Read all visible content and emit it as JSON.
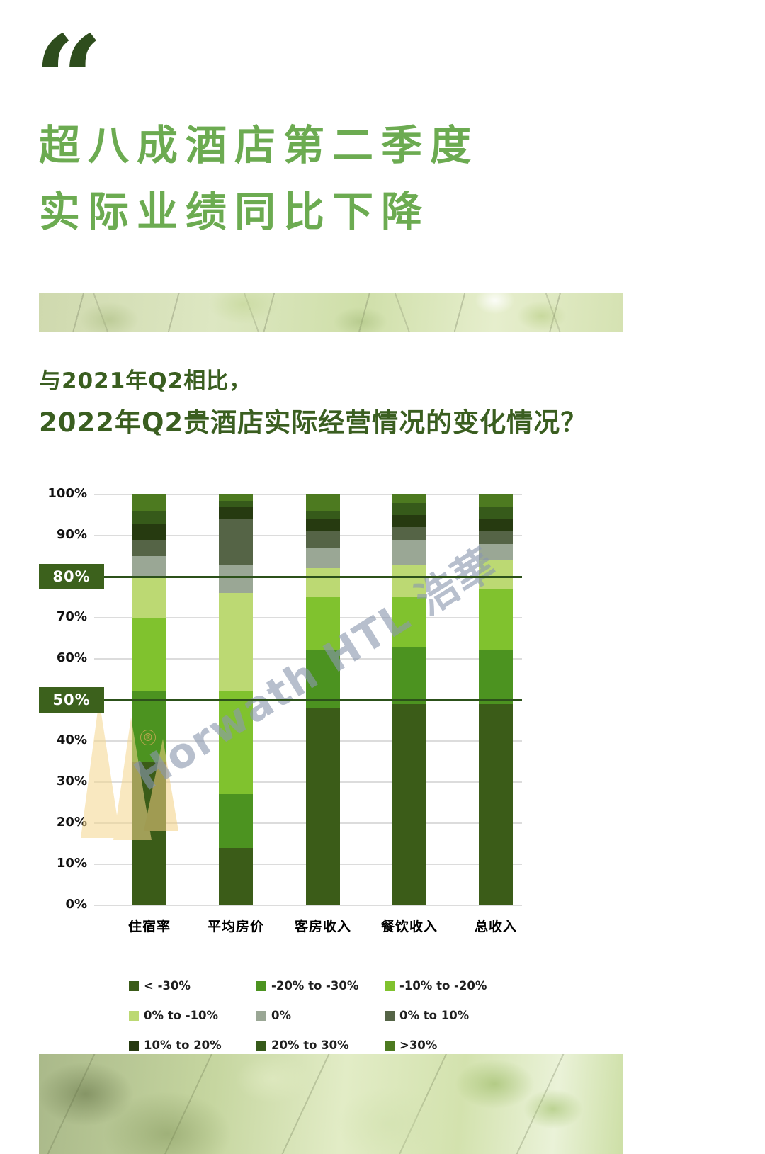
{
  "page": {
    "quote_mark": "“",
    "title_line1": "超八成酒店第二季度",
    "title_line2": "实际业绩同比下降",
    "subtitle_line1": "与2021年Q2相比，",
    "subtitle_line2": "2022年Q2贵酒店实际经营情况的变化情况？"
  },
  "watermark": {
    "text": "Horwath HTL 浩華",
    "registered_mark": "®"
  },
  "colors": {
    "quote_green": "#2e4d1d",
    "title_green": "#6cab51",
    "subtitle_green": "#3a5e20",
    "highlight_box_green": "#3c611c",
    "highlight_line_green": "#2c511a",
    "grid_gray": "#dcdcdc",
    "watermark_blue_gray": "#8b97ae",
    "logo_gold": "#f5d78e"
  },
  "chart_data": {
    "type": "bar",
    "stacked": true,
    "grid": true,
    "legend_position": "bottom",
    "ylim": [
      0,
      100
    ],
    "y_ticks": [
      "0%",
      "10%",
      "20%",
      "30%",
      "40%",
      "50%",
      "60%",
      "70%",
      "80%",
      "90%",
      "100%"
    ],
    "highlighted_ticks": [
      "50%",
      "80%"
    ],
    "categories": [
      "住宿率",
      "平均房价",
      "客房收入",
      "餐饮收入",
      "总收入"
    ],
    "series": [
      {
        "name": "< -30%",
        "color": "#3b5c18",
        "values": [
          35,
          14,
          48,
          49,
          49
        ]
      },
      {
        "name": "-20% to -30%",
        "color": "#4c9320",
        "values": [
          17,
          13,
          14,
          14,
          13
        ]
      },
      {
        "name": "-10% to -20%",
        "color": "#80c22e",
        "values": [
          18,
          25,
          13,
          12,
          15
        ]
      },
      {
        "name": "0% to -10%",
        "color": "#bcd973",
        "values": [
          10,
          24,
          7,
          8,
          7
        ]
      },
      {
        "name": "0%",
        "color": "#9aa795",
        "values": [
          5,
          7,
          5,
          6,
          4
        ]
      },
      {
        "name": "0% to 10%",
        "color": "#556446",
        "values": [
          4,
          11,
          4,
          3,
          3
        ]
      },
      {
        "name": "10% to 20%",
        "color": "#263a10",
        "values": [
          4,
          3,
          3,
          3,
          3
        ]
      },
      {
        "name": "20% to 30%",
        "color": "#365a1a",
        "values": [
          3,
          1.5,
          2,
          3,
          3
        ]
      },
      {
        "name": ">30%",
        "color": "#4d7a20",
        "values": [
          4,
          1.5,
          4,
          2,
          3
        ]
      }
    ]
  }
}
